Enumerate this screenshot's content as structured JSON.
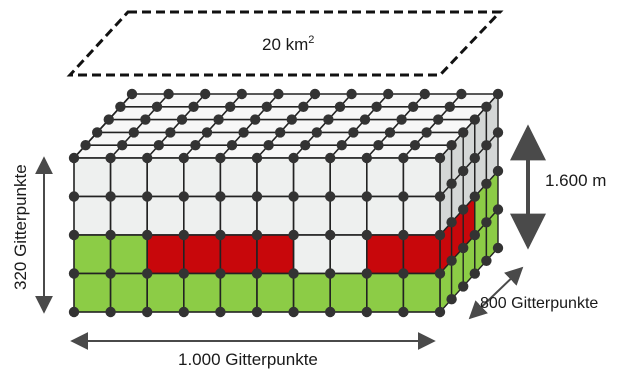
{
  "area_label": {
    "value": "20 km",
    "superscript": "2"
  },
  "height_label": "1.600 m",
  "width_label": "1.000 Gitterpunkte",
  "depth_label": "800 Gitterpunkte",
  "vertical_label": "320 Gitterpunkte",
  "colors": {
    "white_cell": "#eef0ef",
    "green_cell": "#8ccc46",
    "red_cell": "#c8070b",
    "top_face": "#f7f7f7",
    "side_face": "#d4d7d6",
    "node": "#333333",
    "edge": "#222222"
  },
  "grid": {
    "columns": 10,
    "rows": 4,
    "depth_steps": 5
  },
  "front_face_rows": [
    [
      "white",
      "white",
      "white",
      "white",
      "white",
      "white",
      "white",
      "white",
      "white",
      "white"
    ],
    [
      "white",
      "white",
      "white",
      "white",
      "white",
      "white",
      "white",
      "white",
      "white",
      "white"
    ],
    [
      "green",
      "green",
      "red",
      "red",
      "red",
      "red",
      "white",
      "white",
      "red",
      "red"
    ],
    [
      "green",
      "green",
      "green",
      "green",
      "green",
      "green",
      "green",
      "green",
      "green",
      "green"
    ]
  ]
}
